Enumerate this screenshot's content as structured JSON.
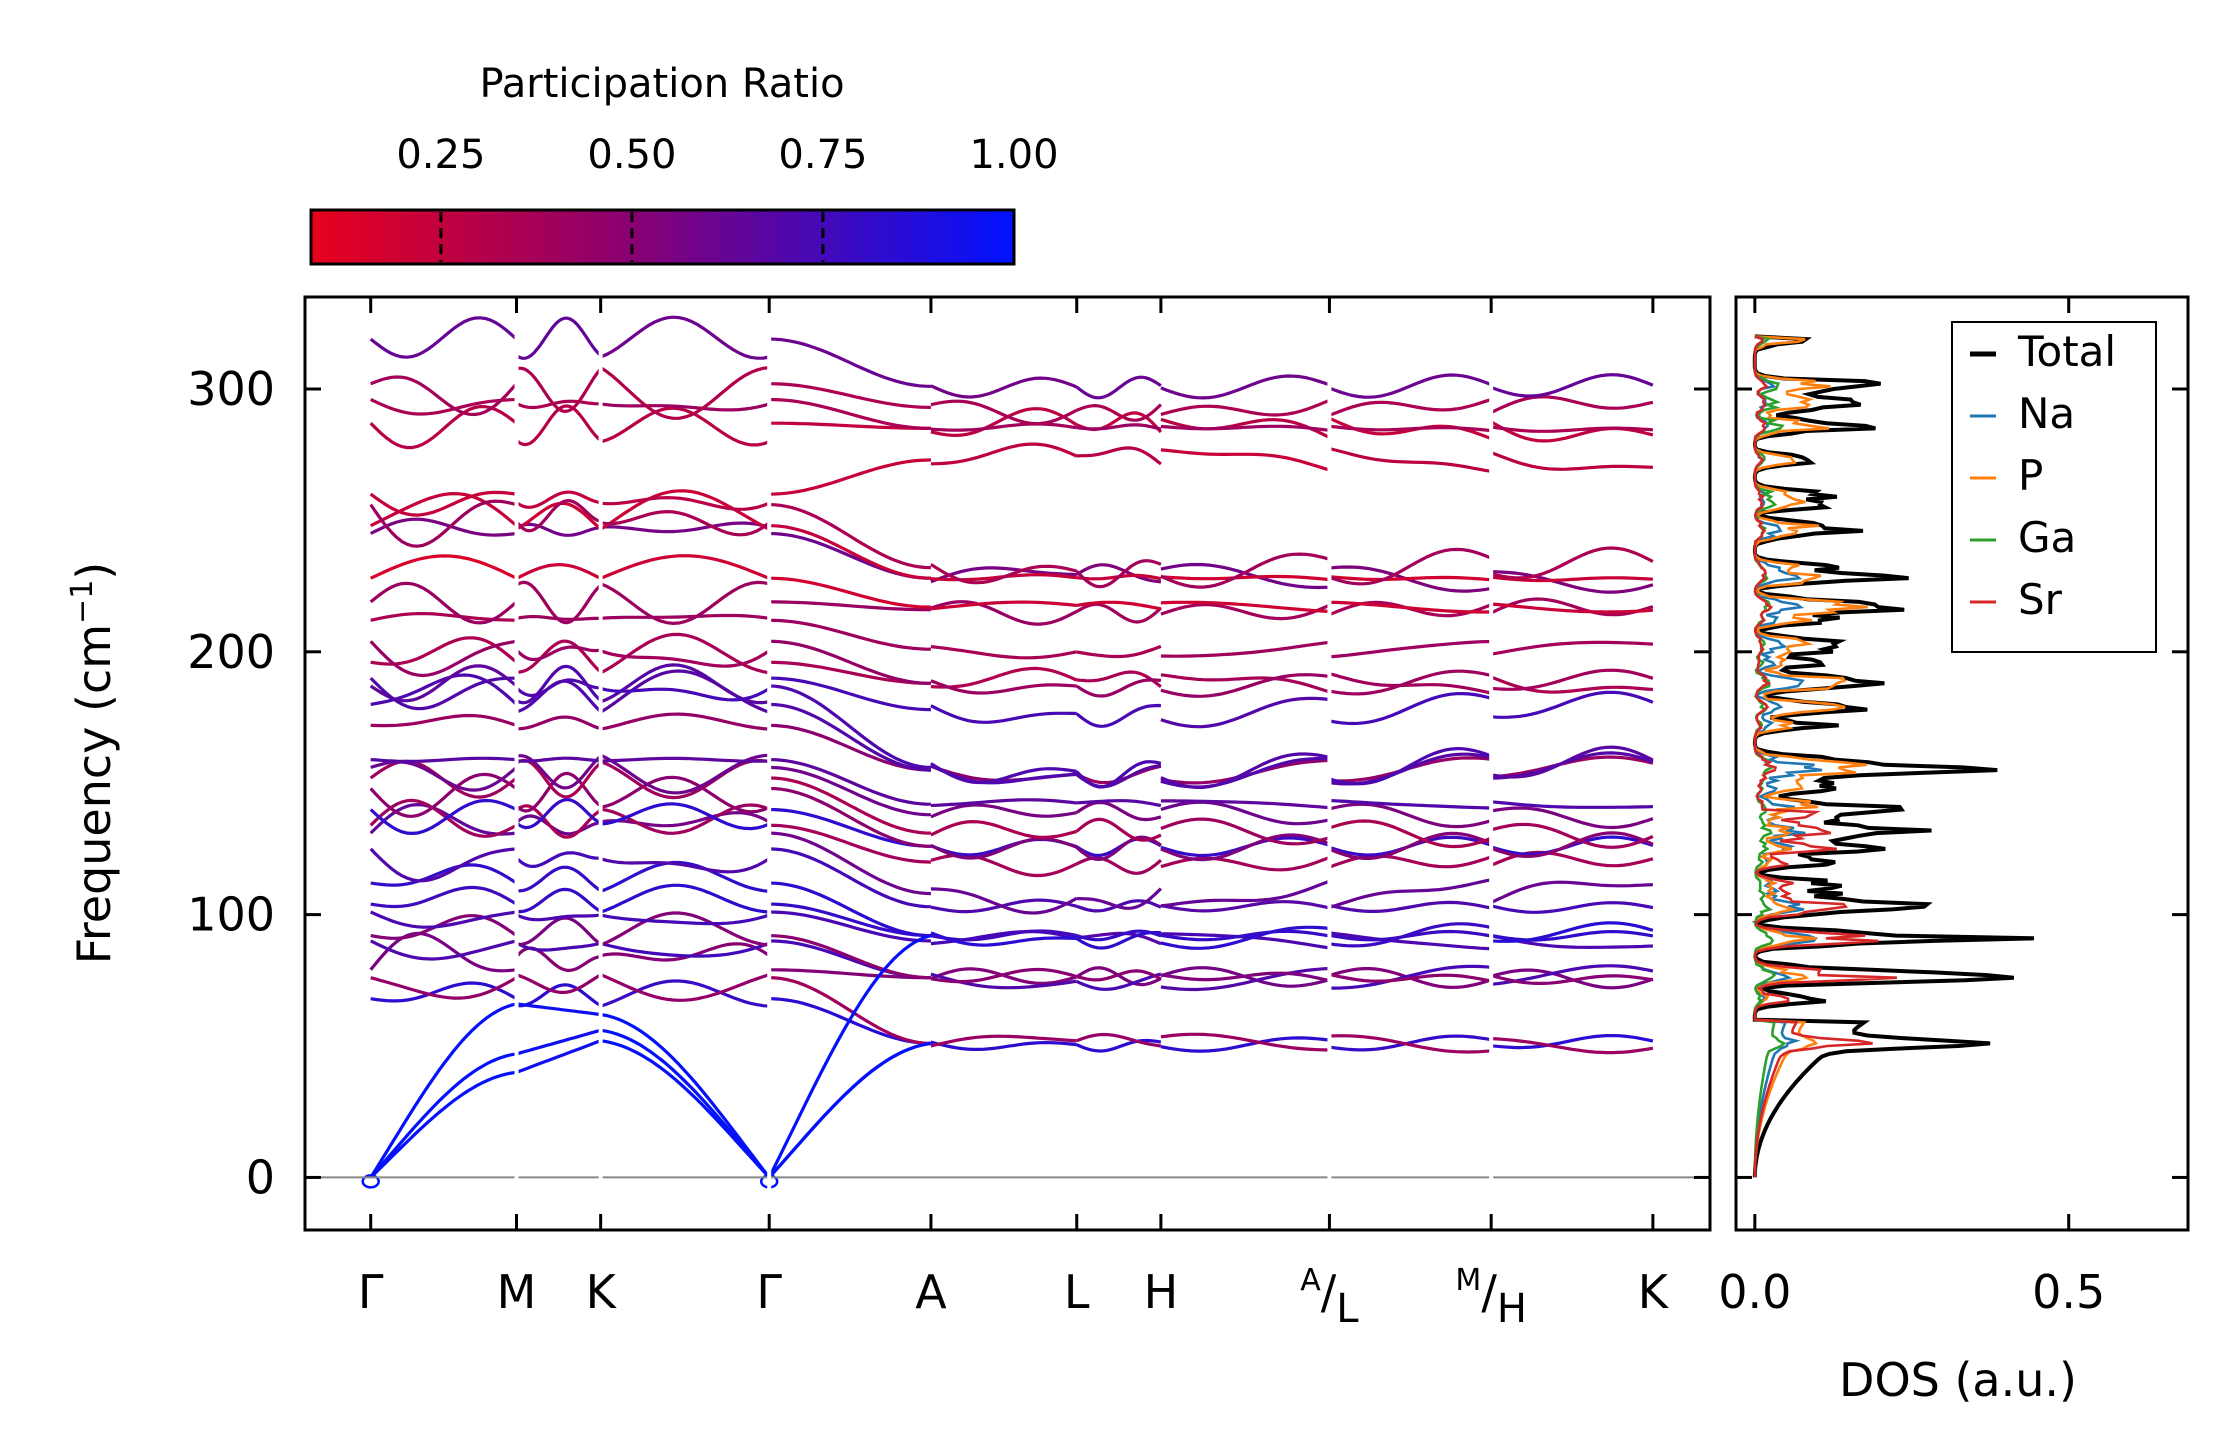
{
  "chart_data": [
    {
      "type": "line",
      "name": "phonon-band-structure",
      "ylabel": "Frequency (cm",
      "ylabel_sup": "−1",
      "ylabel_close": ")",
      "ylim": [
        -20,
        335
      ],
      "yticks": [
        0,
        100,
        200,
        300
      ],
      "ytick_labels": [
        "0",
        "100",
        "200",
        "300"
      ],
      "kpoints": [
        {
          "label": "Γ",
          "x": 0.0
        },
        {
          "label": "M",
          "x": 0.577
        },
        {
          "label": "K",
          "x": 0.91
        },
        {
          "label": "Γ",
          "x": 1.577
        },
        {
          "label": "A",
          "x": 2.217
        },
        {
          "label": "L",
          "x": 2.794
        },
        {
          "label": "H",
          "x": 3.127
        },
        {
          "label": "A/L",
          "main": "A",
          "sub": "L",
          "x": 3.794
        },
        {
          "label": "M/H",
          "main": "M",
          "sub": "H",
          "x": 4.434
        },
        {
          "label": "K",
          "x": 5.074
        }
      ],
      "xlim": [
        -0.26,
        5.3
      ],
      "segment_breaks": [
        0.577,
        0.91,
        1.577,
        3.794,
        4.434
      ],
      "zero_line": true,
      "color_encoding": "Participation Ratio",
      "bands_at_gamma": [
        0,
        0,
        0,
        68,
        76,
        79,
        90,
        92,
        101,
        104,
        112,
        125,
        131,
        134,
        140,
        148,
        152,
        156,
        159,
        172,
        180,
        187,
        190,
        196,
        204,
        212,
        219,
        228,
        245,
        248,
        256,
        260,
        287,
        296,
        302,
        319
      ],
      "bands_at_A": [
        51,
        51,
        76,
        76,
        90,
        92,
        103,
        108,
        120,
        126,
        131,
        138,
        142,
        155,
        156,
        178,
        188,
        201,
        216,
        217,
        228,
        232,
        273,
        285,
        293,
        301
      ]
    },
    {
      "type": "line",
      "name": "phonon-dos",
      "xlabel": "DOS (a.u.)",
      "xlim": [
        -0.03,
        0.69
      ],
      "ylim": [
        -20,
        335
      ],
      "xticks": [
        0.0,
        0.5
      ],
      "xtick_labels": [
        "0.0",
        "0.5"
      ],
      "series": [
        {
          "name": "Total",
          "color": "#000000"
        },
        {
          "name": "Na",
          "color": "#1f77b4"
        },
        {
          "name": "P",
          "color": "#ff7f0e"
        },
        {
          "name": "Ga",
          "color": "#2ca02c"
        },
        {
          "name": "Sr",
          "color": "#d62728"
        }
      ],
      "legend_position": "top-right"
    },
    {
      "type": "heatmap",
      "name": "participation-colorbar",
      "title": "Participation Ratio",
      "range": [
        0.08,
        1.0
      ],
      "ticks": [
        0.25,
        0.5,
        0.75,
        1.0
      ],
      "tick_labels": [
        "0.25",
        "0.50",
        "0.75",
        "1.00"
      ],
      "colors": {
        "low": "#e8001c",
        "mid": "#8a0070",
        "high": "#0012ff"
      }
    }
  ]
}
